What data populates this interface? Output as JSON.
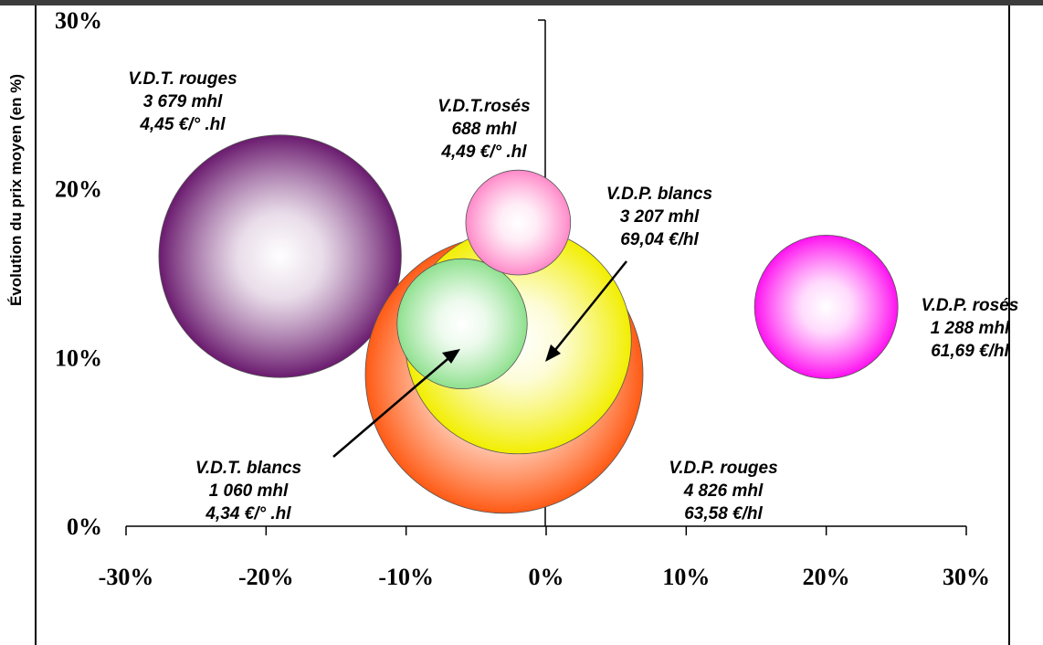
{
  "chart_data": {
    "type": "bubble",
    "ylabel": "Évolution du prix moyen (en %)",
    "xlabel": "",
    "xlim": [
      -30,
      30
    ],
    "ylim": [
      0,
      30
    ],
    "x_ticks": [
      "-30%",
      "-20%",
      "-10%",
      "0%",
      "10%",
      "20%",
      "30%"
    ],
    "y_ticks": [
      "0%",
      "10%",
      "20%",
      "30%"
    ],
    "grid": false,
    "series": [
      {
        "name": "V.D.T. rouges",
        "x": -19,
        "y": 16,
        "size_mhl": 3679,
        "lines": [
          "V.D.T. rouges",
          "3 679 mhl",
          "4,45 €/° .hl"
        ],
        "color": "#6a1a6e"
      },
      {
        "name": "V.D.P. rouges",
        "x": -3,
        "y": 9,
        "size_mhl": 4826,
        "lines": [
          "V.D.P. rouges",
          "4 826 mhl",
          "63,58 €/hl"
        ],
        "color": "#ff5a14"
      },
      {
        "name": "V.D.P. blancs",
        "x": -2,
        "y": 11,
        "size_mhl": 3207,
        "lines": [
          "V.D.P. blancs",
          "3 207 mhl",
          "69,04 €/hl"
        ],
        "color": "#f2ee00"
      },
      {
        "name": "V.D.T. blancs",
        "x": -6,
        "y": 12,
        "size_mhl": 1060,
        "lines": [
          "V.D.T. blancs",
          "1 060 mhl",
          "4,34 €/° .hl"
        ],
        "color": "#8ee08e"
      },
      {
        "name": "V.D.T.rosés",
        "x": -2,
        "y": 18,
        "size_mhl": 688,
        "lines": [
          "V.D.T.rosés",
          "688 mhl",
          "4,49 €/° .hl"
        ],
        "color": "#ff88c8"
      },
      {
        "name": "V.D.P. rosés",
        "x": 20,
        "y": 13,
        "size_mhl": 1288,
        "lines": [
          "V.D.P. rosés",
          "1 288 mhl",
          "61,69 €/hl"
        ],
        "color": "#ff10f0"
      }
    ]
  }
}
